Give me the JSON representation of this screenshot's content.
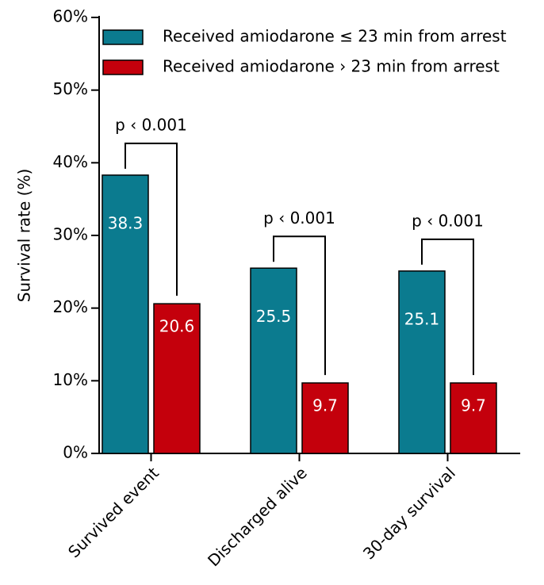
{
  "chart_data": {
    "type": "bar",
    "y_label": "Survival rate (%)",
    "categories": [
      "Survived event",
      "Discharged alive",
      "30-day survival"
    ],
    "series": [
      {
        "name": "Received amiodarone ≤ 23 min from arrest",
        "color": "#0b7b8f",
        "values": [
          38.3,
          25.5,
          25.1
        ]
      },
      {
        "name": "Received amiodarone › 23 min from arrest",
        "color": "#c4000c",
        "values": [
          20.6,
          9.7,
          9.7
        ]
      }
    ],
    "annotations": [
      "p ‹ 0.001",
      "p ‹ 0.001",
      "p ‹ 0.001"
    ],
    "ylim": [
      0,
      60
    ],
    "yticks": [
      {
        "value": 0,
        "label": "0%"
      },
      {
        "value": 10,
        "label": "10%"
      },
      {
        "value": 20,
        "label": "20%"
      },
      {
        "value": 30,
        "label": "30%"
      },
      {
        "value": 40,
        "label": "40%"
      },
      {
        "value": 50,
        "label": "50%"
      },
      {
        "value": 60,
        "label": "60%"
      }
    ],
    "legend": "upper-left",
    "grid": false
  }
}
